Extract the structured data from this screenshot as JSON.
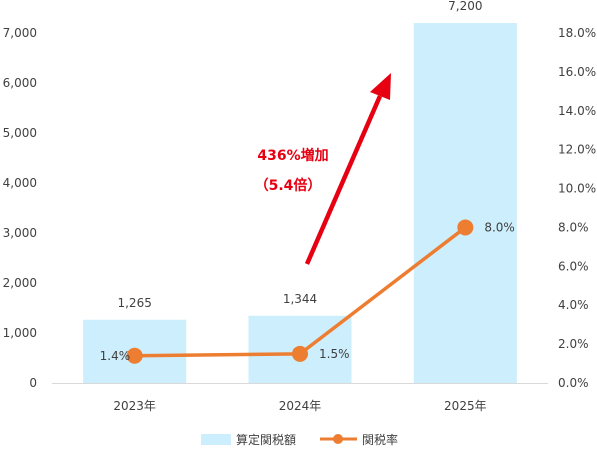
{
  "chart_data": {
    "type": "bar",
    "categories": [
      "2023年",
      "2024年",
      "2025年"
    ],
    "series": [
      {
        "name": "算定関税額",
        "type": "bar",
        "axis": "left",
        "values": [
          1265,
          1344,
          7200
        ],
        "color": "#cdeefc"
      },
      {
        "name": "関税率",
        "type": "line",
        "axis": "right",
        "values": [
          1.4,
          1.5,
          8.0
        ],
        "color": "#ed7d31"
      }
    ],
    "bar_labels": [
      "1,265",
      "1,344",
      "7,200"
    ],
    "line_labels": [
      "1.4%",
      "1.5%",
      "8.0%"
    ],
    "yleft": {
      "min": 0,
      "max": 7000,
      "step": 1000,
      "ticks": [
        "0",
        "1,000",
        "2,000",
        "3,000",
        "4,000",
        "5,000",
        "6,000",
        "7,000"
      ]
    },
    "yright": {
      "min": 0,
      "max": 18,
      "step": 2,
      "ticks": [
        "0.0%",
        "2.0%",
        "4.0%",
        "6.0%",
        "8.0%",
        "10.0%",
        "12.0%",
        "14.0%",
        "16.0%",
        "18.0%"
      ]
    },
    "annotation": {
      "line1": "436%増加",
      "line2": "（5.4倍）",
      "color": "#e60012"
    },
    "legend_position": "bottom",
    "grid": false
  }
}
